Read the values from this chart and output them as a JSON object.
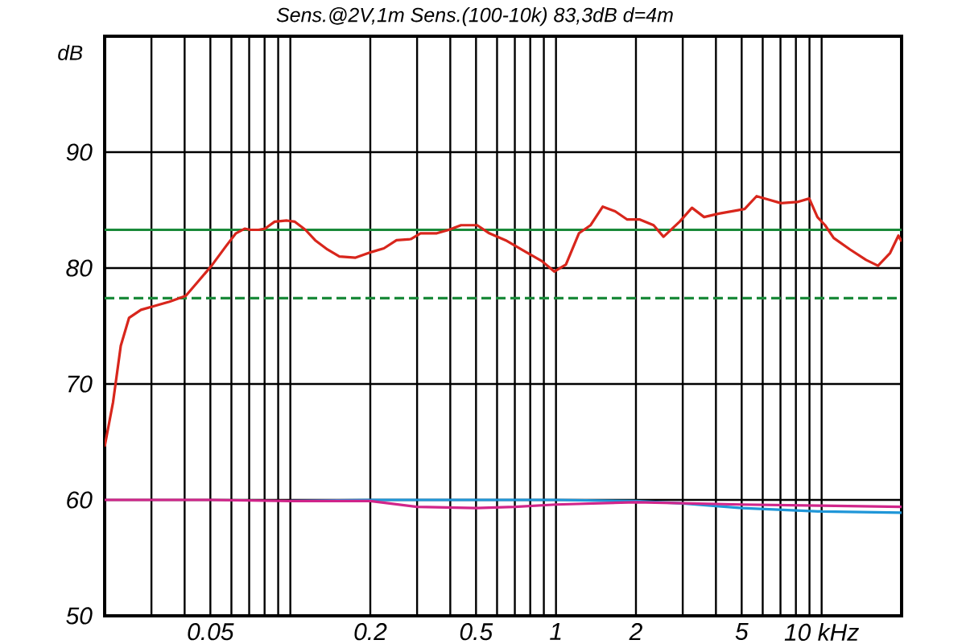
{
  "chart_data": {
    "type": "line",
    "title": "Sens.@2V,1m  Sens.(100-10k) 83,3dB  d=4m",
    "ylabel": "dB",
    "log": "x",
    "grid": true,
    "xlim": [
      0.02,
      20
    ],
    "ylim": [
      50,
      100
    ],
    "xticks": [
      {
        "value": 0.03,
        "label": null
      },
      {
        "value": 0.04,
        "label": null
      },
      0.05,
      {
        "value": 0.06,
        "label": null
      },
      {
        "value": 0.07,
        "label": null
      },
      {
        "value": 0.08,
        "label": null
      },
      {
        "value": 0.09,
        "label": null
      },
      {
        "value": 0.1,
        "label": null
      },
      0.2,
      {
        "value": 0.3,
        "label": null
      },
      {
        "value": 0.4,
        "label": null
      },
      0.5,
      {
        "value": 0.6,
        "label": null
      },
      {
        "value": 0.7,
        "label": null
      },
      {
        "value": 0.8,
        "label": null
      },
      {
        "value": 0.9,
        "label": null
      },
      1,
      2,
      {
        "value": 3,
        "label": null
      },
      {
        "value": 4,
        "label": null
      },
      5,
      {
        "value": 6,
        "label": null
      },
      {
        "value": 7,
        "label": null
      },
      {
        "value": 8,
        "label": null
      },
      {
        "value": 9,
        "label": null
      },
      {
        "value": 10,
        "label": "10 kHz"
      }
    ],
    "yticks": [
      50,
      60,
      70,
      80,
      90
    ],
    "ref_lines": [
      {
        "axis": "y",
        "value": 83.3,
        "color": "#1a8a3a",
        "line_style": "solid"
      },
      {
        "axis": "y",
        "value": 77.4,
        "color": "#1a8a3a",
        "line_style": "dashed"
      }
    ],
    "series": [
      {
        "color": "#d8261c",
        "x": [
          0.02,
          0.0215,
          0.023,
          0.0247,
          0.0274,
          0.0305,
          0.0351,
          0.0404,
          0.0448,
          0.0505,
          0.0573,
          0.0624,
          0.0673,
          0.0708,
          0.0759,
          0.0803,
          0.0873,
          0.0971,
          0.104,
          0.114,
          0.124,
          0.138,
          0.153,
          0.176,
          0.203,
          0.225,
          0.251,
          0.284,
          0.309,
          0.356,
          0.395,
          0.439,
          0.505,
          0.561,
          0.646,
          0.769,
          0.885,
          0.985,
          1.09,
          1.22,
          1.35,
          1.5,
          1.67,
          1.85,
          2.06,
          2.33,
          2.54,
          2.92,
          3.25,
          3.61,
          4.1,
          4.61,
          5.13,
          5.69,
          6.32,
          7.03,
          8.09,
          8.98,
          9.64,
          10.3,
          11.1,
          12.8,
          14.7,
          16.3,
          18.1,
          19.45,
          20
        ],
        "values": [
          64.6,
          68.4,
          73.3,
          75.7,
          76.4,
          76.7,
          77.1,
          77.6,
          78.8,
          80.2,
          81.9,
          83.0,
          83.4,
          83.3,
          83.3,
          83.4,
          84.0,
          84.1,
          84.0,
          83.3,
          82.4,
          81.6,
          81.0,
          80.9,
          81.4,
          81.7,
          82.4,
          82.5,
          83.0,
          83.0,
          83.3,
          83.7,
          83.7,
          83.0,
          82.4,
          81.4,
          80.6,
          79.7,
          80.3,
          83.0,
          83.7,
          85.3,
          84.9,
          84.2,
          84.2,
          83.7,
          82.7,
          84.0,
          85.2,
          84.4,
          84.7,
          84.9,
          85.1,
          86.2,
          85.9,
          85.6,
          85.7,
          86.0,
          84.4,
          83.7,
          82.6,
          81.6,
          80.7,
          80.2,
          81.3,
          82.8,
          82.3
        ]
      },
      {
        "color": "#1f96d8",
        "x": [
          0.1,
          0.2,
          0.5,
          1,
          2,
          3,
          5,
          10,
          20
        ],
        "values": [
          59.9,
          60.0,
          60.0,
          60.0,
          59.9,
          59.7,
          59.3,
          59.0,
          58.9
        ]
      },
      {
        "color": "#d0258a",
        "x": [
          0.02,
          0.05,
          0.1,
          0.2,
          0.3,
          0.5,
          0.7,
          1,
          2,
          5,
          10,
          20
        ],
        "values": [
          60.0,
          60.0,
          59.9,
          59.9,
          59.4,
          59.3,
          59.4,
          59.6,
          59.8,
          59.6,
          59.5,
          59.4
        ]
      }
    ]
  }
}
